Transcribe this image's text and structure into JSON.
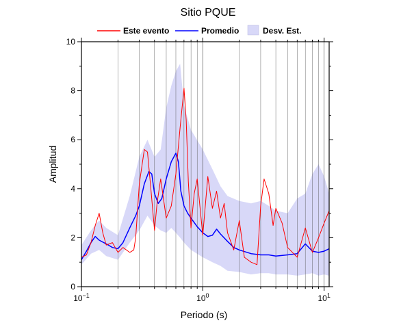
{
  "chart_data": {
    "type": "line",
    "title": "Sitio PQUE",
    "xlabel": "Periodo (s)",
    "ylabel": "Amplitud",
    "xscale": "log",
    "xlim": [
      0.1,
      11
    ],
    "ylim": [
      0,
      10
    ],
    "grid": true,
    "legend_position": "top",
    "x_ticks": [
      {
        "value": 0.1,
        "base": "10",
        "exp": "−1"
      },
      {
        "value": 1,
        "base": "10",
        "exp": "0"
      },
      {
        "value": 10,
        "base": "10",
        "exp": "1"
      }
    ],
    "y_ticks": [
      "0",
      "2",
      "4",
      "6",
      "8",
      "10"
    ],
    "band": {
      "name": "Desv. Est.",
      "color": "#d8d8f8",
      "x": [
        0.1,
        0.12,
        0.14,
        0.16,
        0.2,
        0.25,
        0.3,
        0.35,
        0.4,
        0.45,
        0.5,
        0.55,
        0.6,
        0.65,
        0.7,
        0.8,
        1.0,
        1.2,
        1.4,
        1.6,
        2.0,
        2.5,
        3.0,
        3.5,
        4.0,
        5.0,
        6.0,
        7.0,
        8.0,
        9.0,
        10.0,
        11.0
      ],
      "upper": [
        1.7,
        2.3,
        2.7,
        2.4,
        2.1,
        3.7,
        5.3,
        6.0,
        5.3,
        5.6,
        7.3,
        8.2,
        8.8,
        9.1,
        7.4,
        6.4,
        5.6,
        4.8,
        4.1,
        3.7,
        3.5,
        3.4,
        3.5,
        3.3,
        3.1,
        3.0,
        3.6,
        3.8,
        4.6,
        5.0,
        4.5,
        3.8
      ],
      "lower": [
        0.9,
        1.35,
        1.5,
        1.25,
        1.1,
        1.8,
        2.3,
        2.9,
        2.5,
        2.3,
        2.2,
        2.4,
        2.2,
        2.0,
        1.8,
        1.5,
        1.2,
        1.0,
        0.85,
        0.65,
        0.6,
        0.5,
        0.55,
        0.55,
        0.5,
        0.5,
        0.45,
        0.5,
        0.55,
        0.45,
        0.5,
        0.45
      ]
    },
    "series": [
      {
        "name": "Promedio",
        "color": "#0000ff",
        "x": [
          0.1,
          0.11,
          0.12,
          0.13,
          0.14,
          0.16,
          0.18,
          0.2,
          0.22,
          0.25,
          0.28,
          0.3,
          0.33,
          0.36,
          0.38,
          0.4,
          0.43,
          0.46,
          0.5,
          0.55,
          0.6,
          0.63,
          0.66,
          0.7,
          0.75,
          0.8,
          0.9,
          1.0,
          1.1,
          1.2,
          1.3,
          1.4,
          1.6,
          1.8,
          2.0,
          2.5,
          3.0,
          3.5,
          4.0,
          5.0,
          6.0,
          7.0,
          8.0,
          9.0,
          10.0,
          11.0
        ],
        "y": [
          1.1,
          1.45,
          1.8,
          2.05,
          1.9,
          1.75,
          1.6,
          1.55,
          1.8,
          2.4,
          2.9,
          3.3,
          4.2,
          4.7,
          4.6,
          3.8,
          3.4,
          3.6,
          4.4,
          5.1,
          5.45,
          5.1,
          3.9,
          3.3,
          3.0,
          2.8,
          2.45,
          2.2,
          2.05,
          2.1,
          2.35,
          2.15,
          1.85,
          1.6,
          1.5,
          1.35,
          1.3,
          1.3,
          1.25,
          1.3,
          1.35,
          1.75,
          1.45,
          1.4,
          1.45,
          1.55
        ]
      },
      {
        "name": "Este evento",
        "color": "#ff0000",
        "x": [
          0.1,
          0.11,
          0.12,
          0.13,
          0.14,
          0.15,
          0.16,
          0.18,
          0.2,
          0.22,
          0.25,
          0.27,
          0.28,
          0.3,
          0.33,
          0.35,
          0.37,
          0.4,
          0.42,
          0.45,
          0.5,
          0.55,
          0.6,
          0.65,
          0.7,
          0.73,
          0.76,
          0.8,
          0.85,
          0.9,
          1.0,
          1.1,
          1.2,
          1.3,
          1.4,
          1.5,
          1.6,
          1.8,
          2.0,
          2.2,
          2.5,
          2.8,
          3.0,
          3.2,
          3.5,
          3.8,
          4.0,
          4.5,
          5.0,
          6.0,
          7.0,
          8.0,
          9.0,
          10.0,
          11.0
        ],
        "y": [
          1.2,
          1.3,
          1.8,
          2.5,
          3.0,
          2.2,
          1.7,
          1.8,
          1.4,
          1.6,
          1.4,
          1.5,
          2.0,
          4.2,
          5.6,
          5.5,
          4.2,
          2.3,
          3.4,
          4.4,
          2.8,
          3.3,
          4.6,
          6.5,
          8.1,
          6.8,
          4.3,
          2.4,
          3.8,
          4.4,
          2.1,
          4.5,
          3.2,
          3.9,
          2.8,
          3.4,
          2.2,
          1.5,
          2.7,
          1.2,
          1.0,
          0.9,
          3.3,
          4.4,
          3.8,
          2.5,
          3.2,
          2.6,
          1.6,
          1.2,
          2.4,
          1.4,
          2.0,
          2.6,
          3.1
        ]
      }
    ]
  }
}
